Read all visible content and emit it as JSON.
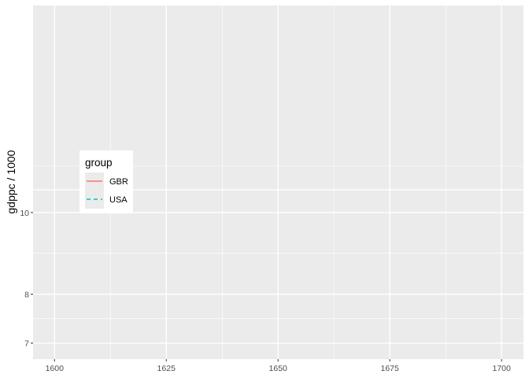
{
  "chart_data": {
    "type": "line",
    "title": "",
    "xlabel": "",
    "ylabel": "gdppc / 1000",
    "x_ticks": [
      1600,
      1625,
      1650,
      1675,
      1700
    ],
    "xlim": [
      1595.2,
      1704.9
    ],
    "y_ticks": [
      7,
      8,
      10
    ],
    "ylim": [
      6.7,
      17.6
    ],
    "y_scale": "log",
    "grid": true,
    "series": [
      {
        "name": "GBR",
        "color": "#F8766D",
        "linetype": "solid",
        "points": []
      },
      {
        "name": "USA",
        "color": "#00BFC4",
        "linetype": "dashed",
        "points": []
      }
    ],
    "legend": {
      "title": "group",
      "placement": "inside-left"
    }
  }
}
